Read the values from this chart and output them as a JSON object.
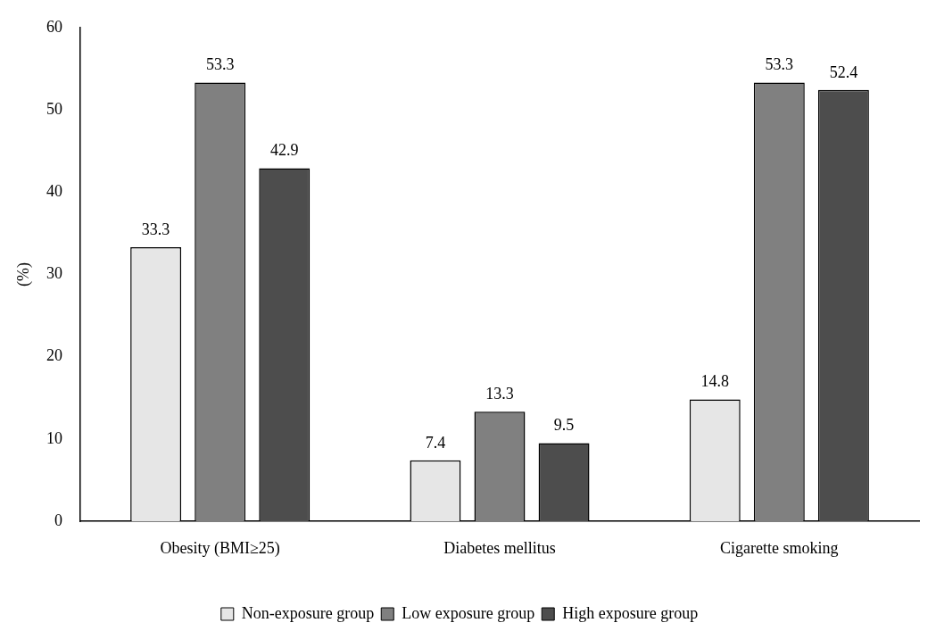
{
  "chart_data": {
    "type": "bar",
    "ylabel": "(%)",
    "categories": [
      "Obesity (BMI≥25)",
      "Diabetes mellitus",
      "Cigarette smoking"
    ],
    "series": [
      {
        "name": "Non-exposure group",
        "color": "#e6e6e6",
        "values": [
          33.3,
          7.4,
          14.8
        ]
      },
      {
        "name": "Low exposure group",
        "color": "#808080",
        "values": [
          53.3,
          13.3,
          53.3
        ]
      },
      {
        "name": "High exposure group",
        "color": "#4d4d4d",
        "values": [
          42.9,
          9.5,
          52.4
        ]
      }
    ],
    "ylim": [
      0,
      60
    ],
    "yticks": [
      0,
      10,
      20,
      30,
      40,
      50,
      60
    ],
    "data_labels": true,
    "grid": false,
    "legend": "bottom"
  }
}
